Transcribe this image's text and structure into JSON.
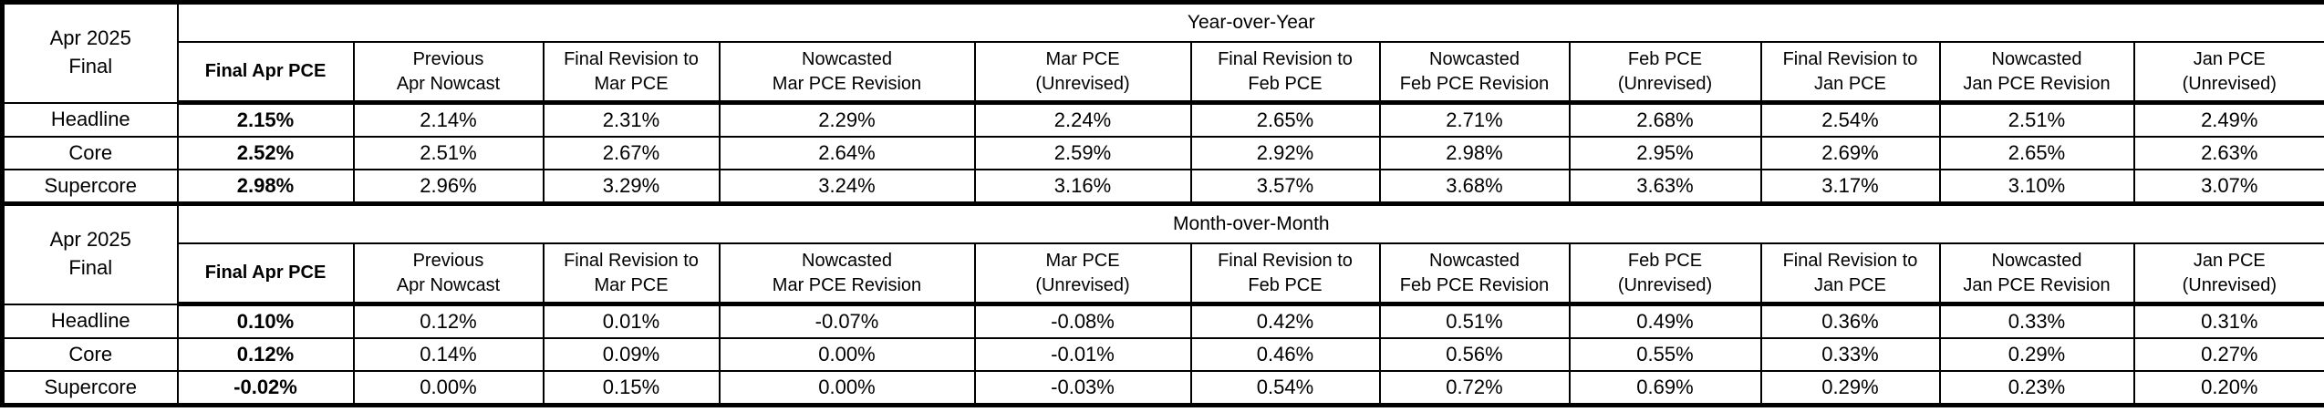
{
  "page": {
    "background_color": "#ffffff",
    "text_color": "#000000",
    "border_color": "#000000"
  },
  "corner_label": "Apr 2025\nFinal",
  "column_headers": [
    "Final Apr PCE",
    "Previous\nApr Nowcast",
    "Final Revision to\nMar PCE",
    "Nowcasted\nMar PCE Revision",
    "Mar PCE\n(Unrevised)",
    "Final Revision to\nFeb PCE",
    "Nowcasted\nFeb PCE Revision",
    "Feb PCE\n(Unrevised)",
    "Final Revision to\nJan PCE",
    "Nowcasted\nJan PCE Revision",
    "Jan PCE\n(Unrevised)"
  ],
  "chart_data": [
    {
      "type": "table",
      "title": "Year-over-Year",
      "corner_label": "Apr 2025 Final",
      "columns": [
        "Final Apr PCE",
        "Previous Apr Nowcast",
        "Final Revision to Mar PCE",
        "Nowcasted Mar PCE Revision",
        "Mar PCE (Unrevised)",
        "Final Revision to Feb PCE",
        "Nowcasted Feb PCE Revision",
        "Feb PCE (Unrevised)",
        "Final Revision to Jan PCE",
        "Nowcasted Jan PCE Revision",
        "Jan PCE (Unrevised)"
      ],
      "rows": [
        {
          "label": "Headline",
          "values": [
            "2.15%",
            "2.14%",
            "2.31%",
            "2.29%",
            "2.24%",
            "2.65%",
            "2.71%",
            "2.68%",
            "2.54%",
            "2.51%",
            "2.49%"
          ]
        },
        {
          "label": "Core",
          "values": [
            "2.52%",
            "2.51%",
            "2.67%",
            "2.64%",
            "2.59%",
            "2.92%",
            "2.98%",
            "2.95%",
            "2.69%",
            "2.65%",
            "2.63%"
          ]
        },
        {
          "label": "Supercore",
          "values": [
            "2.98%",
            "2.96%",
            "3.29%",
            "3.24%",
            "3.16%",
            "3.57%",
            "3.68%",
            "3.63%",
            "3.17%",
            "3.10%",
            "3.07%"
          ]
        }
      ]
    },
    {
      "type": "table",
      "title": "Month-over-Month",
      "corner_label": "Apr 2025 Final",
      "columns": [
        "Final Apr PCE",
        "Previous Apr Nowcast",
        "Final Revision to Mar PCE",
        "Nowcasted Mar PCE Revision",
        "Mar PCE (Unrevised)",
        "Final Revision to Feb PCE",
        "Nowcasted Feb PCE Revision",
        "Feb PCE (Unrevised)",
        "Final Revision to Jan PCE",
        "Nowcasted Jan PCE Revision",
        "Jan PCE (Unrevised)"
      ],
      "rows": [
        {
          "label": "Headline",
          "values": [
            "0.10%",
            "0.12%",
            "0.01%",
            "-0.07%",
            "-0.08%",
            "0.42%",
            "0.51%",
            "0.49%",
            "0.36%",
            "0.33%",
            "0.31%"
          ]
        },
        {
          "label": "Core",
          "values": [
            "0.12%",
            "0.14%",
            "0.09%",
            "0.00%",
            "-0.01%",
            "0.46%",
            "0.56%",
            "0.55%",
            "0.33%",
            "0.29%",
            "0.27%"
          ]
        },
        {
          "label": "Supercore",
          "values": [
            "-0.02%",
            "0.00%",
            "0.15%",
            "0.00%",
            "-0.03%",
            "0.54%",
            "0.72%",
            "0.69%",
            "0.29%",
            "0.23%",
            "0.20%"
          ]
        }
      ]
    }
  ]
}
